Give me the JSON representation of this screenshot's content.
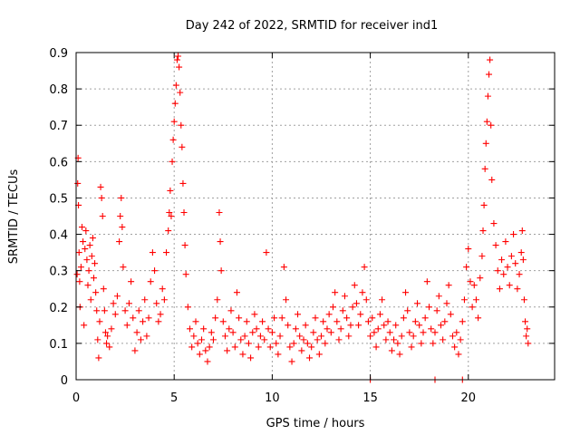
{
  "chart_data": {
    "type": "scatter",
    "title": "Day 242 of 2022, SRMTID for receiver ind1",
    "xlabel": "GPS time / hours",
    "ylabel": "SRMTID / TECUs",
    "xlim": [
      0,
      24.4
    ],
    "ylim": [
      0,
      0.9
    ],
    "x_ticks": [
      0,
      5,
      10,
      15,
      20
    ],
    "y_ticks": [
      0,
      0.1,
      0.2,
      0.3,
      0.4,
      0.5,
      0.6,
      0.7,
      0.8,
      0.9
    ],
    "x_tick_labels": [
      "0",
      "5",
      "10",
      "15",
      "20"
    ],
    "y_tick_labels": [
      "0",
      "0.1",
      "0.2",
      "0.3",
      "0.4",
      "0.5",
      "0.6",
      "0.7",
      "0.8",
      "0.9"
    ],
    "grid": true,
    "marker": "plus",
    "color": "#ff0000",
    "series": [
      {
        "name": "SRMTID",
        "points": [
          [
            0.05,
            0.29
          ],
          [
            0.08,
            0.54
          ],
          [
            0.1,
            0.61
          ],
          [
            0.12,
            0.48
          ],
          [
            0.15,
            0.35
          ],
          [
            0.18,
            0.27
          ],
          [
            0.2,
            0.2
          ],
          [
            0.25,
            0.31
          ],
          [
            0.3,
            0.42
          ],
          [
            0.35,
            0.38
          ],
          [
            0.4,
            0.15
          ],
          [
            0.45,
            0.36
          ],
          [
            0.5,
            0.41
          ],
          [
            0.55,
            0.33
          ],
          [
            0.6,
            0.26
          ],
          [
            0.65,
            0.3
          ],
          [
            0.7,
            0.37
          ],
          [
            0.75,
            0.22
          ],
          [
            0.8,
            0.34
          ],
          [
            0.85,
            0.39
          ],
          [
            0.9,
            0.28
          ],
          [
            0.95,
            0.32
          ],
          [
            1.0,
            0.24
          ],
          [
            1.05,
            0.19
          ],
          [
            1.1,
            0.11
          ],
          [
            1.15,
            0.06
          ],
          [
            1.2,
            0.16
          ],
          [
            1.25,
            0.53
          ],
          [
            1.3,
            0.5
          ],
          [
            1.35,
            0.45
          ],
          [
            1.4,
            0.25
          ],
          [
            1.45,
            0.19
          ],
          [
            1.5,
            0.13
          ],
          [
            1.55,
            0.1
          ],
          [
            1.6,
            0.12
          ],
          [
            1.7,
            0.09
          ],
          [
            1.8,
            0.14
          ],
          [
            1.9,
            0.21
          ],
          [
            2.0,
            0.18
          ],
          [
            2.1,
            0.23
          ],
          [
            2.2,
            0.38
          ],
          [
            2.25,
            0.45
          ],
          [
            2.3,
            0.5
          ],
          [
            2.35,
            0.42
          ],
          [
            2.4,
            0.31
          ],
          [
            2.5,
            0.19
          ],
          [
            2.6,
            0.15
          ],
          [
            2.7,
            0.21
          ],
          [
            2.8,
            0.27
          ],
          [
            2.9,
            0.17
          ],
          [
            3.0,
            0.08
          ],
          [
            3.1,
            0.13
          ],
          [
            3.2,
            0.19
          ],
          [
            3.3,
            0.11
          ],
          [
            3.4,
            0.16
          ],
          [
            3.5,
            0.22
          ],
          [
            3.6,
            0.12
          ],
          [
            3.7,
            0.17
          ],
          [
            3.8,
            0.27
          ],
          [
            3.9,
            0.35
          ],
          [
            4.0,
            0.3
          ],
          [
            4.1,
            0.21
          ],
          [
            4.2,
            0.16
          ],
          [
            4.3,
            0.18
          ],
          [
            4.4,
            0.25
          ],
          [
            4.5,
            0.22
          ],
          [
            4.6,
            0.35
          ],
          [
            4.7,
            0.41
          ],
          [
            4.75,
            0.46
          ],
          [
            4.8,
            0.52
          ],
          [
            4.85,
            0.45
          ],
          [
            4.9,
            0.6
          ],
          [
            4.95,
            0.66
          ],
          [
            5.0,
            0.71
          ],
          [
            5.05,
            0.76
          ],
          [
            5.1,
            0.81
          ],
          [
            5.15,
            0.88
          ],
          [
            5.2,
            0.89
          ],
          [
            5.25,
            0.86
          ],
          [
            5.3,
            0.79
          ],
          [
            5.35,
            0.7
          ],
          [
            5.4,
            0.64
          ],
          [
            5.45,
            0.54
          ],
          [
            5.5,
            0.46
          ],
          [
            5.55,
            0.37
          ],
          [
            5.6,
            0.29
          ],
          [
            5.7,
            0.2
          ],
          [
            5.8,
            0.14
          ],
          [
            5.9,
            0.09
          ],
          [
            6.0,
            0.12
          ],
          [
            6.1,
            0.16
          ],
          [
            6.2,
            0.1
          ],
          [
            6.3,
            0.07
          ],
          [
            6.4,
            0.11
          ],
          [
            6.5,
            0.14
          ],
          [
            6.6,
            0.08
          ],
          [
            6.7,
            0.05
          ],
          [
            6.8,
            0.09
          ],
          [
            6.9,
            0.13
          ],
          [
            7.0,
            0.11
          ],
          [
            7.1,
            0.17
          ],
          [
            7.2,
            0.22
          ],
          [
            7.3,
            0.46
          ],
          [
            7.35,
            0.38
          ],
          [
            7.4,
            0.3
          ],
          [
            7.5,
            0.16
          ],
          [
            7.6,
            0.12
          ],
          [
            7.7,
            0.08
          ],
          [
            7.8,
            0.14
          ],
          [
            7.9,
            0.19
          ],
          [
            8.0,
            0.13
          ],
          [
            8.1,
            0.09
          ],
          [
            8.2,
            0.24
          ],
          [
            8.3,
            0.17
          ],
          [
            8.4,
            0.11
          ],
          [
            8.5,
            0.07
          ],
          [
            8.6,
            0.12
          ],
          [
            8.7,
            0.16
          ],
          [
            8.8,
            0.1
          ],
          [
            8.9,
            0.06
          ],
          [
            9.0,
            0.13
          ],
          [
            9.1,
            0.18
          ],
          [
            9.2,
            0.14
          ],
          [
            9.3,
            0.09
          ],
          [
            9.4,
            0.12
          ],
          [
            9.5,
            0.16
          ],
          [
            9.6,
            0.11
          ],
          [
            9.7,
            0.35
          ],
          [
            9.8,
            0.14
          ],
          [
            9.9,
            0.09
          ],
          [
            10.0,
            0.13
          ],
          [
            10.1,
            0.17
          ],
          [
            10.2,
            0.1
          ],
          [
            10.3,
            0.07
          ],
          [
            10.4,
            0.12
          ],
          [
            10.5,
            0.17
          ],
          [
            10.6,
            0.31
          ],
          [
            10.7,
            0.22
          ],
          [
            10.8,
            0.15
          ],
          [
            10.9,
            0.09
          ],
          [
            11.0,
            0.05
          ],
          [
            11.1,
            0.1
          ],
          [
            11.2,
            0.14
          ],
          [
            11.3,
            0.18
          ],
          [
            11.4,
            0.12
          ],
          [
            11.5,
            0.08
          ],
          [
            11.6,
            0.11
          ],
          [
            11.7,
            0.15
          ],
          [
            11.8,
            0.1
          ],
          [
            11.9,
            0.06
          ],
          [
            12.0,
            0.09
          ],
          [
            12.1,
            0.13
          ],
          [
            12.2,
            0.17
          ],
          [
            12.3,
            0.11
          ],
          [
            12.4,
            0.07
          ],
          [
            12.5,
            0.12
          ],
          [
            12.6,
            0.16
          ],
          [
            12.7,
            0.1
          ],
          [
            12.8,
            0.14
          ],
          [
            12.9,
            0.18
          ],
          [
            13.0,
            0.13
          ],
          [
            13.1,
            0.2
          ],
          [
            13.2,
            0.24
          ],
          [
            13.3,
            0.16
          ],
          [
            13.4,
            0.11
          ],
          [
            13.5,
            0.14
          ],
          [
            13.6,
            0.19
          ],
          [
            13.7,
            0.23
          ],
          [
            13.8,
            0.17
          ],
          [
            13.9,
            0.12
          ],
          [
            14.0,
            0.15
          ],
          [
            14.1,
            0.2
          ],
          [
            14.2,
            0.26
          ],
          [
            14.3,
            0.21
          ],
          [
            14.4,
            0.15
          ],
          [
            14.5,
            0.18
          ],
          [
            14.6,
            0.24
          ],
          [
            14.7,
            0.31
          ],
          [
            14.8,
            0.22
          ],
          [
            14.9,
            0.16
          ],
          [
            15.0,
            0.12
          ],
          [
            15.1,
            0.17
          ],
          [
            15.2,
            0.13
          ],
          [
            15.3,
            0.09
          ],
          [
            15.4,
            0.14
          ],
          [
            15.5,
            0.18
          ],
          [
            15.6,
            0.22
          ],
          [
            15.7,
            0.15
          ],
          [
            15.8,
            0.11
          ],
          [
            15.9,
            0.16
          ],
          [
            16.0,
            0.13
          ],
          [
            16.1,
            0.08
          ],
          [
            16.2,
            0.11
          ],
          [
            16.3,
            0.15
          ],
          [
            16.4,
            0.1
          ],
          [
            16.5,
            0.07
          ],
          [
            16.6,
            0.12
          ],
          [
            16.7,
            0.17
          ],
          [
            16.8,
            0.24
          ],
          [
            16.9,
            0.19
          ],
          [
            17.0,
            0.13
          ],
          [
            17.1,
            0.09
          ],
          [
            17.2,
            0.12
          ],
          [
            17.3,
            0.16
          ],
          [
            17.4,
            0.21
          ],
          [
            17.5,
            0.15
          ],
          [
            17.6,
            0.1
          ],
          [
            17.7,
            0.13
          ],
          [
            17.8,
            0.17
          ],
          [
            17.9,
            0.27
          ],
          [
            18.0,
            0.2
          ],
          [
            18.1,
            0.14
          ],
          [
            18.2,
            0.1
          ],
          [
            18.3,
            0.13
          ],
          [
            18.4,
            0.19
          ],
          [
            18.5,
            0.23
          ],
          [
            18.6,
            0.15
          ],
          [
            18.7,
            0.11
          ],
          [
            18.8,
            0.16
          ],
          [
            18.9,
            0.21
          ],
          [
            19.0,
            0.26
          ],
          [
            19.1,
            0.18
          ],
          [
            19.2,
            0.12
          ],
          [
            19.3,
            0.09
          ],
          [
            19.4,
            0.13
          ],
          [
            19.5,
            0.07
          ],
          [
            19.6,
            0.11
          ],
          [
            19.7,
            0.16
          ],
          [
            19.8,
            0.22
          ],
          [
            19.9,
            0.31
          ],
          [
            20.0,
            0.36
          ],
          [
            20.1,
            0.27
          ],
          [
            20.2,
            0.2
          ],
          [
            20.3,
            0.26
          ],
          [
            20.4,
            0.22
          ],
          [
            20.5,
            0.17
          ],
          [
            20.6,
            0.28
          ],
          [
            20.7,
            0.34
          ],
          [
            20.75,
            0.41
          ],
          [
            20.8,
            0.48
          ],
          [
            20.85,
            0.58
          ],
          [
            20.9,
            0.65
          ],
          [
            20.95,
            0.71
          ],
          [
            21.0,
            0.78
          ],
          [
            21.05,
            0.84
          ],
          [
            21.1,
            0.88
          ],
          [
            21.15,
            0.7
          ],
          [
            21.2,
            0.55
          ],
          [
            21.3,
            0.43
          ],
          [
            21.4,
            0.37
          ],
          [
            21.5,
            0.3
          ],
          [
            21.6,
            0.25
          ],
          [
            21.7,
            0.33
          ],
          [
            21.8,
            0.29
          ],
          [
            21.9,
            0.38
          ],
          [
            22.0,
            0.31
          ],
          [
            22.1,
            0.26
          ],
          [
            22.2,
            0.34
          ],
          [
            22.3,
            0.4
          ],
          [
            22.4,
            0.32
          ],
          [
            22.5,
            0.25
          ],
          [
            22.6,
            0.29
          ],
          [
            22.7,
            0.35
          ],
          [
            22.75,
            0.41
          ],
          [
            22.8,
            0.33
          ],
          [
            22.85,
            0.22
          ],
          [
            22.9,
            0.16
          ],
          [
            22.95,
            0.12
          ],
          [
            23.0,
            0.14
          ],
          [
            23.05,
            0.1
          ],
          [
            15.0,
            0.0
          ],
          [
            18.3,
            0.0
          ],
          [
            19.7,
            0.0
          ]
        ]
      }
    ]
  }
}
